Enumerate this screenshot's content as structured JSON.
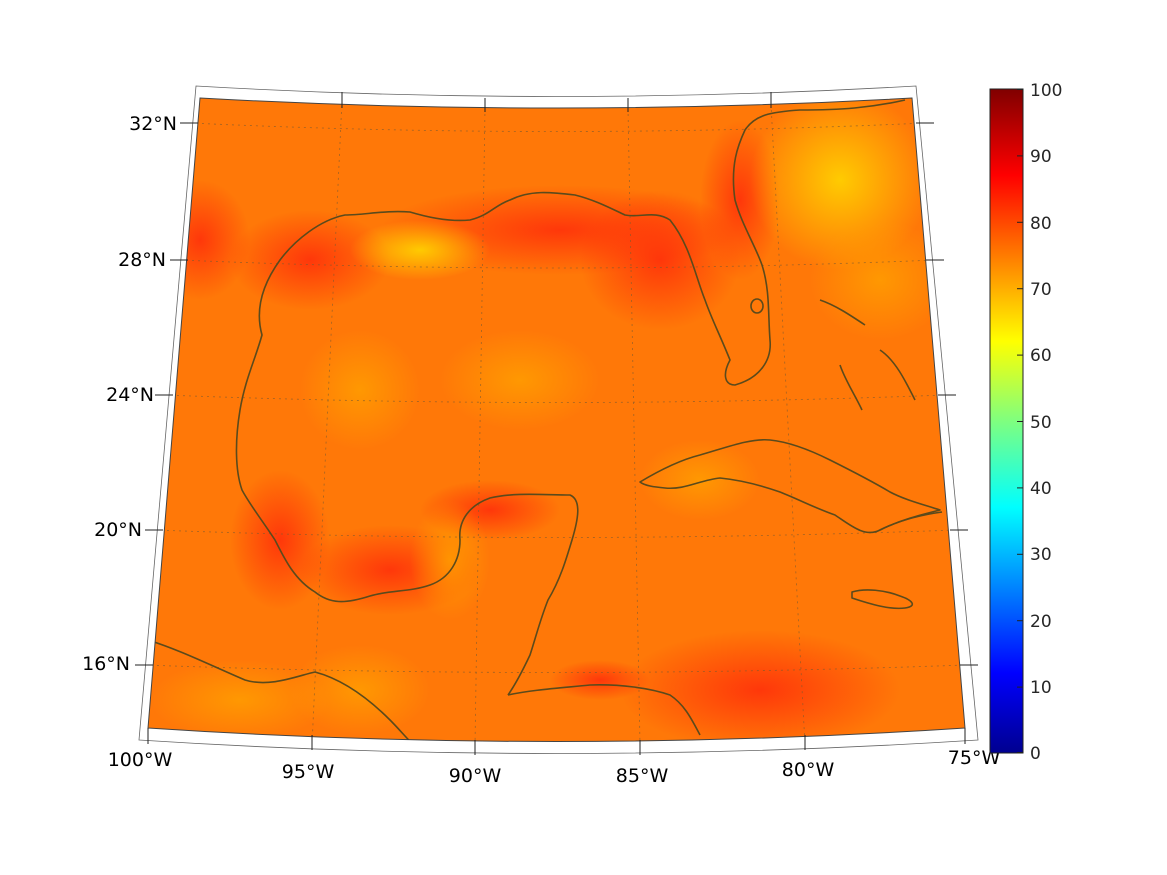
{
  "map": {
    "lat_labels": [
      "32°N",
      "28°N",
      "24°N",
      "20°N",
      "16°N"
    ],
    "lon_labels": [
      "100°W",
      "95°W",
      "90°W",
      "85°W",
      "80°W",
      "75°W"
    ],
    "colorbar": {
      "ticks": [
        "100",
        "90",
        "80",
        "70",
        "60",
        "50",
        "40",
        "30",
        "20",
        "10",
        "0"
      ],
      "colormap": "jet",
      "range": [
        0,
        100
      ]
    },
    "colors": {
      "field_dominant": "#ff7a08",
      "field_high": "#ff3a0a",
      "field_low": "#ffcf00",
      "coastline": "#5b4a1c"
    }
  }
}
